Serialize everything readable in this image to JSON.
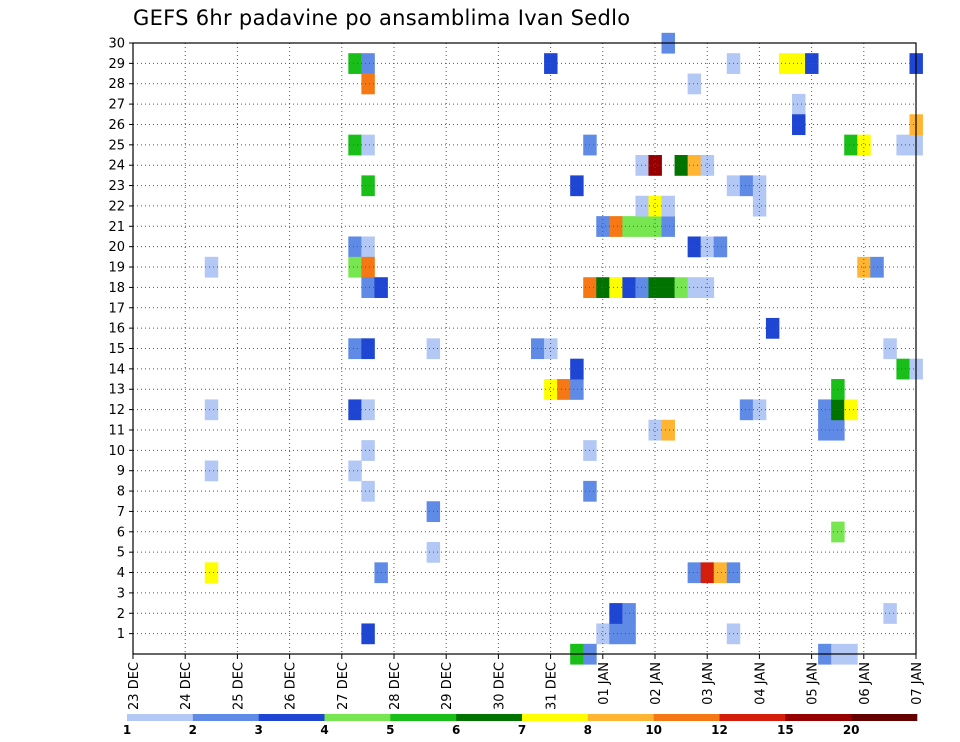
{
  "chart_data": {
    "type": "heatmap",
    "title": "GEFS 6hr padavine po ansamblima Ivan Sedlo",
    "x_tick_labels": [
      "23 DEC",
      "24 DEC",
      "25 DEC",
      "26 DEC",
      "27 DEC",
      "28 DEC",
      "29 DEC",
      "30 DEC",
      "31 DEC",
      "01 JAN",
      "02 JAN",
      "03 JAN",
      "04 JAN",
      "05 JAN",
      "06 JAN",
      "07 JAN"
    ],
    "y_tick_labels": [
      "1",
      "2",
      "3",
      "4",
      "5",
      "6",
      "7",
      "8",
      "9",
      "10",
      "11",
      "12",
      "13",
      "14",
      "15",
      "16",
      "17",
      "18",
      "19",
      "20",
      "21",
      "22",
      "23",
      "24",
      "25",
      "26",
      "27",
      "28",
      "29",
      "30"
    ],
    "x_range_days": [
      0,
      15
    ],
    "y_range_members": [
      0,
      30
    ],
    "grid": true,
    "colorbar": {
      "placement": "bottom",
      "labels": [
        "1",
        "2",
        "3",
        "4",
        "5",
        "6",
        "7",
        "8",
        "10",
        "12",
        "15",
        "20"
      ],
      "colors": [
        "#b4c8f5",
        "#5f8ae6",
        "#1e46d2",
        "#78e650",
        "#19be19",
        "#007300",
        "#ffff00",
        "#ffb432",
        "#f57814",
        "#d21e0a",
        "#960000",
        "#640000"
      ]
    },
    "cells": [
      {
        "day": 4.25,
        "member": 29,
        "color_index": 4
      },
      {
        "day": 4.5,
        "member": 29,
        "color_index": 1
      },
      {
        "day": 4.5,
        "member": 28,
        "color_index": 8
      },
      {
        "day": 4.25,
        "member": 25,
        "color_index": 4
      },
      {
        "day": 4.5,
        "member": 25,
        "color_index": 0
      },
      {
        "day": 4.5,
        "member": 23,
        "color_index": 4
      },
      {
        "day": 4.25,
        "member": 20,
        "color_index": 1
      },
      {
        "day": 4.5,
        "member": 20,
        "color_index": 0
      },
      {
        "day": 4.25,
        "member": 19,
        "color_index": 3
      },
      {
        "day": 4.5,
        "member": 19,
        "color_index": 8
      },
      {
        "day": 4.5,
        "member": 18,
        "color_index": 1
      },
      {
        "day": 4.75,
        "member": 18,
        "color_index": 2
      },
      {
        "day": 4.25,
        "member": 15,
        "color_index": 1
      },
      {
        "day": 4.5,
        "member": 15,
        "color_index": 2
      },
      {
        "day": 4.25,
        "member": 12,
        "color_index": 2
      },
      {
        "day": 4.5,
        "member": 12,
        "color_index": 0
      },
      {
        "day": 4.5,
        "member": 10,
        "color_index": 0
      },
      {
        "day": 4.25,
        "member": 9,
        "color_index": 0
      },
      {
        "day": 4.5,
        "member": 8,
        "color_index": 0
      },
      {
        "day": 4.75,
        "member": 4,
        "color_index": 1
      },
      {
        "day": 4.5,
        "member": 1,
        "color_index": 2
      },
      {
        "day": 1.5,
        "member": 19,
        "color_index": 0
      },
      {
        "day": 1.5,
        "member": 12,
        "color_index": 0
      },
      {
        "day": 1.5,
        "member": 9,
        "color_index": 0
      },
      {
        "day": 1.5,
        "member": 4,
        "color_index": 6
      },
      {
        "day": 5.75,
        "member": 15,
        "color_index": 0
      },
      {
        "day": 5.75,
        "member": 7,
        "color_index": 1
      },
      {
        "day": 5.75,
        "member": 5,
        "color_index": 0
      },
      {
        "day": 8.0,
        "member": 29,
        "color_index": 2
      },
      {
        "day": 7.75,
        "member": 15,
        "color_index": 1
      },
      {
        "day": 8.0,
        "member": 15,
        "color_index": 0
      },
      {
        "day": 8.0,
        "member": 13,
        "color_index": 6
      },
      {
        "day": 8.25,
        "member": 13,
        "color_index": 8
      },
      {
        "day": 8.5,
        "member": 13,
        "color_index": 1
      },
      {
        "day": 8.5,
        "member": 14,
        "color_index": 2
      },
      {
        "day": 8.5,
        "member": 23,
        "color_index": 2
      },
      {
        "day": 8.75,
        "member": 25,
        "color_index": 1
      },
      {
        "day": 8.75,
        "member": 10,
        "color_index": 0
      },
      {
        "day": 8.75,
        "member": 8,
        "color_index": 1
      },
      {
        "day": 8.5,
        "member": 0,
        "color_index": 4
      },
      {
        "day": 8.75,
        "member": 0,
        "color_index": 1
      },
      {
        "day": 8.75,
        "member": 18,
        "color_index": 8
      },
      {
        "day": 9.0,
        "member": 18,
        "color_index": 5
      },
      {
        "day": 9.25,
        "member": 18,
        "color_index": 6
      },
      {
        "day": 9.5,
        "member": 18,
        "color_index": 2
      },
      {
        "day": 9.75,
        "member": 18,
        "color_index": 1
      },
      {
        "day": 10.0,
        "member": 18,
        "color_index": 5
      },
      {
        "day": 10.25,
        "member": 18,
        "color_index": 5
      },
      {
        "day": 10.5,
        "member": 18,
        "color_index": 3
      },
      {
        "day": 10.75,
        "member": 18,
        "color_index": 0
      },
      {
        "day": 11.0,
        "member": 18,
        "color_index": 0
      },
      {
        "day": 9.0,
        "member": 21,
        "color_index": 1
      },
      {
        "day": 9.25,
        "member": 21,
        "color_index": 8
      },
      {
        "day": 9.5,
        "member": 21,
        "color_index": 3
      },
      {
        "day": 9.75,
        "member": 21,
        "color_index": 3
      },
      {
        "day": 10.0,
        "member": 21,
        "color_index": 3
      },
      {
        "day": 10.25,
        "member": 21,
        "color_index": 1
      },
      {
        "day": 9.75,
        "member": 22,
        "color_index": 0
      },
      {
        "day": 10.0,
        "member": 22,
        "color_index": 6
      },
      {
        "day": 10.25,
        "member": 22,
        "color_index": 0
      },
      {
        "day": 9.0,
        "member": 1,
        "color_index": 0
      },
      {
        "day": 9.25,
        "member": 1,
        "color_index": 1
      },
      {
        "day": 9.5,
        "member": 1,
        "color_index": 1
      },
      {
        "day": 9.25,
        "member": 2,
        "color_index": 2
      },
      {
        "day": 9.5,
        "member": 2,
        "color_index": 1
      },
      {
        "day": 9.75,
        "member": 24,
        "color_index": 0
      },
      {
        "day": 10.0,
        "member": 24,
        "color_index": 10
      },
      {
        "day": 10.5,
        "member": 24,
        "color_index": 5
      },
      {
        "day": 10.75,
        "member": 24,
        "color_index": 7
      },
      {
        "day": 11.0,
        "member": 24,
        "color_index": 0
      },
      {
        "day": 10.0,
        "member": 11,
        "color_index": 0
      },
      {
        "day": 10.25,
        "member": 11,
        "color_index": 7
      },
      {
        "day": 10.25,
        "member": 30,
        "color_index": 1
      },
      {
        "day": 10.75,
        "member": 28,
        "color_index": 0
      },
      {
        "day": 10.75,
        "member": 20,
        "color_index": 2
      },
      {
        "day": 11.0,
        "member": 20,
        "color_index": 0
      },
      {
        "day": 11.25,
        "member": 20,
        "color_index": 1
      },
      {
        "day": 10.75,
        "member": 4,
        "color_index": 1
      },
      {
        "day": 11.0,
        "member": 4,
        "color_index": 9
      },
      {
        "day": 11.25,
        "member": 4,
        "color_index": 7
      },
      {
        "day": 11.5,
        "member": 4,
        "color_index": 1
      },
      {
        "day": 11.5,
        "member": 29,
        "color_index": 0
      },
      {
        "day": 11.5,
        "member": 23,
        "color_index": 0
      },
      {
        "day": 11.75,
        "member": 23,
        "color_index": 1
      },
      {
        "day": 12.0,
        "member": 23,
        "color_index": 0
      },
      {
        "day": 12.0,
        "member": 22,
        "color_index": 0
      },
      {
        "day": 11.75,
        "member": 12,
        "color_index": 1
      },
      {
        "day": 12.0,
        "member": 12,
        "color_index": 0
      },
      {
        "day": 11.5,
        "member": 1,
        "color_index": 0
      },
      {
        "day": 12.25,
        "member": 16,
        "color_index": 2
      },
      {
        "day": 12.5,
        "member": 29,
        "color_index": 6
      },
      {
        "day": 12.75,
        "member": 29,
        "color_index": 6
      },
      {
        "day": 13.0,
        "member": 29,
        "color_index": 2
      },
      {
        "day": 12.75,
        "member": 27,
        "color_index": 0
      },
      {
        "day": 12.75,
        "member": 26,
        "color_index": 2
      },
      {
        "day": 13.25,
        "member": 12,
        "color_index": 1
      },
      {
        "day": 13.25,
        "member": 11,
        "color_index": 1
      },
      {
        "day": 13.5,
        "member": 11,
        "color_index": 1
      },
      {
        "day": 13.5,
        "member": 12,
        "color_index": 5
      },
      {
        "day": 13.5,
        "member": 13,
        "color_index": 4
      },
      {
        "day": 13.75,
        "member": 12,
        "color_index": 6
      },
      {
        "day": 13.5,
        "member": 6,
        "color_index": 3
      },
      {
        "day": 13.25,
        "member": 0,
        "color_index": 1
      },
      {
        "day": 13.5,
        "member": 0,
        "color_index": 0
      },
      {
        "day": 13.75,
        "member": 0,
        "color_index": 0
      },
      {
        "day": 13.75,
        "member": 25,
        "color_index": 4
      },
      {
        "day": 14.0,
        "member": 25,
        "color_index": 6
      },
      {
        "day": 14.0,
        "member": 19,
        "color_index": 7
      },
      {
        "day": 14.25,
        "member": 19,
        "color_index": 1
      },
      {
        "day": 14.5,
        "member": 15,
        "color_index": 0
      },
      {
        "day": 14.5,
        "member": 2,
        "color_index": 0
      },
      {
        "day": 14.75,
        "member": 14,
        "color_index": 4
      },
      {
        "day": 15.0,
        "member": 14,
        "color_index": 0
      },
      {
        "day": 14.75,
        "member": 25,
        "color_index": 0
      },
      {
        "day": 15.0,
        "member": 25,
        "color_index": 0
      },
      {
        "day": 15.0,
        "member": 26,
        "color_index": 7
      },
      {
        "day": 15.0,
        "member": 29,
        "color_index": 2
      }
    ]
  }
}
